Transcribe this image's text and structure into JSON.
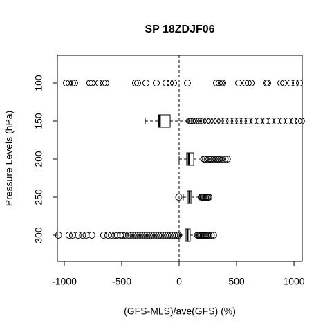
{
  "chart_data": {
    "type": "boxplot",
    "title": "SP 18ZDJF06",
    "x_label": "(GFS-MLS)/ave(GFS) (%)",
    "y_label": "Pressure Levels (hPa)",
    "categories": [
      "100",
      "150",
      "200",
      "250",
      "300"
    ],
    "xlim": [
      -1060,
      1072
    ],
    "xticks": [
      -1000,
      -500,
      0,
      500,
      1000
    ],
    "reference_line": 0,
    "boxes": [
      {
        "outliers": [
          -982,
          -958,
          -928,
          -910,
          -777,
          -759,
          -699,
          -657,
          -639,
          -380,
          -361,
          -289,
          -199,
          -114,
          -78,
          -48,
          72,
          325,
          349,
          367,
          380,
          518,
          578,
          602,
          627,
          759,
          771,
          886,
          910,
          970,
          1012,
          1048
        ]
      },
      {
        "whisker_low": -295,
        "q1": -181,
        "median": -169,
        "q3": -78,
        "whisker_high": 84,
        "outliers": [
          88,
          100,
          115,
          130,
          150,
          170,
          190,
          210,
          240,
          270,
          300,
          330,
          360,
          400,
          440,
          480,
          520,
          560,
          600,
          650,
          700,
          750,
          800,
          850,
          900,
          950,
          1000,
          1040,
          1065
        ]
      },
      {
        "whisker_low": 0,
        "q1": 66,
        "median": 84,
        "q3": 127,
        "whisker_high": 205,
        "outliers": [
          217,
          230,
          245,
          260,
          275,
          290,
          305,
          320,
          335,
          350,
          365,
          380,
          400,
          420
        ]
      },
      {
        "whisker_low": 36,
        "q1": 72,
        "median": 90,
        "q3": 108,
        "whisker_high": 181,
        "outliers": [
          -3,
          193,
          200,
          210,
          220,
          230,
          240,
          250,
          259
        ]
      },
      {
        "whisker_low": 12,
        "q1": 54,
        "median": 72,
        "q3": 96,
        "whisker_high": 157,
        "outliers": [
          -1050,
          -958,
          -928,
          -880,
          -841,
          -810,
          -760,
          -657,
          -620,
          -590,
          -560,
          -540,
          -510,
          -490,
          -470,
          -440,
          -420,
          -400,
          -380,
          -360,
          -340,
          -320,
          -300,
          -280,
          -260,
          -240,
          -220,
          -200,
          -180,
          -160,
          -140,
          -120,
          -100,
          -80,
          -60,
          -40,
          -20,
          -5,
          160,
          170,
          180,
          190,
          200,
          210,
          220,
          230,
          240,
          250,
          260,
          280,
          300
        ]
      }
    ]
  }
}
